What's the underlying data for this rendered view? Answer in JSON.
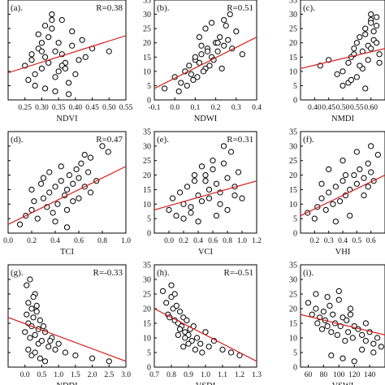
{
  "chart_data": [
    {
      "type": "scatter",
      "panel_label": "(a).",
      "r_label": "R=0.38",
      "xlabel": "NDVI",
      "xlim": [
        0.2,
        0.55
      ],
      "ylim": [
        0,
        35
      ],
      "xticks": [
        "0.25",
        "0.30",
        "0.35",
        "0.40",
        "0.45",
        "0.50",
        "0.55"
      ],
      "yticks": [
        "0",
        "5",
        "10",
        "15",
        "20",
        "25",
        "30",
        "35"
      ],
      "fit_line": {
        "x": [
          0.2,
          0.55
        ],
        "y": [
          9.5,
          22.5
        ]
      },
      "points": {
        "x": [
          0.25,
          0.27,
          0.28,
          0.29,
          0.3,
          0.31,
          0.32,
          0.33,
          0.34,
          0.35,
          0.36,
          0.37,
          0.39,
          0.42,
          0.5,
          0.26,
          0.28,
          0.3,
          0.32,
          0.34,
          0.36,
          0.38,
          0.41,
          0.45,
          0.29,
          0.31,
          0.33,
          0.35,
          0.37,
          0.4,
          0.27,
          0.3,
          0.33,
          0.36,
          0.39,
          0.43,
          0.31,
          0.34,
          0.38
        ],
        "y": [
          12,
          14,
          9,
          18,
          20,
          15,
          22,
          25,
          17,
          10,
          16,
          13,
          19,
          21,
          17,
          7,
          5,
          11,
          13,
          8,
          12,
          6,
          14,
          18,
          23,
          26,
          28,
          20,
          11,
          9,
          16,
          17,
          30,
          28,
          24,
          15,
          4,
          3,
          2
        ]
      }
    },
    {
      "type": "scatter",
      "panel_label": "(b).",
      "r_label": "R=0.51",
      "xlabel": "NDWI",
      "xlim": [
        -0.1,
        0.4
      ],
      "ylim": [
        0,
        35
      ],
      "xticks": [
        "-0.1",
        "0.0",
        "0.1",
        "0.2",
        "0.3",
        "0.4"
      ],
      "yticks": [
        "0",
        "5",
        "10",
        "15",
        "20",
        "25",
        "30",
        "35"
      ],
      "fit_line": {
        "x": [
          -0.1,
          0.4
        ],
        "y": [
          4,
          22
        ]
      },
      "points": {
        "x": [
          -0.05,
          0.0,
          0.03,
          0.05,
          0.07,
          0.08,
          0.1,
          0.12,
          0.13,
          0.15,
          0.16,
          0.18,
          0.2,
          0.21,
          0.22,
          0.24,
          0.25,
          0.27,
          0.3,
          0.33,
          0.02,
          0.06,
          0.09,
          0.11,
          0.14,
          0.17,
          0.19,
          0.23,
          0.26,
          0.28,
          0.12,
          0.15,
          0.18,
          0.21,
          0.24,
          0.1,
          0.13,
          0.16
        ],
        "y": [
          4,
          8,
          6,
          10,
          12,
          9,
          14,
          13,
          16,
          11,
          18,
          15,
          20,
          17,
          22,
          19,
          26,
          30,
          24,
          16,
          3,
          5,
          7,
          8,
          10,
          12,
          14,
          11,
          21,
          18,
          22,
          25,
          27,
          20,
          28,
          15,
          19,
          17
        ]
      }
    },
    {
      "type": "scatter",
      "panel_label": "(c).",
      "r_label": "",
      "xlabel": "NMDI",
      "xlim": [
        0.35,
        0.65
      ],
      "ylim": [
        0,
        35
      ],
      "xticks": [
        "0.40",
        "0.45",
        "0.50",
        "0.55",
        "0.60"
      ],
      "yticks": [
        "0",
        "5",
        "10",
        "15",
        "20",
        "25",
        "30",
        "35"
      ],
      "fit_line": {
        "x": [
          0.35,
          0.65
        ],
        "y": [
          11,
          18
        ]
      },
      "points": {
        "x": [
          0.42,
          0.45,
          0.48,
          0.5,
          0.52,
          0.53,
          0.54,
          0.55,
          0.56,
          0.57,
          0.58,
          0.59,
          0.6,
          0.61,
          0.62,
          0.63,
          0.55,
          0.57,
          0.59,
          0.6,
          0.61,
          0.62,
          0.54,
          0.56,
          0.58,
          0.6,
          0.52,
          0.58,
          0.6,
          0.62,
          0.63,
          0.5,
          0.53
        ],
        "y": [
          12,
          14,
          9,
          10,
          13,
          15,
          18,
          20,
          22,
          17,
          25,
          19,
          28,
          21,
          26,
          16,
          8,
          11,
          14,
          30,
          24,
          29,
          16,
          12,
          23,
          18,
          6,
          4,
          27,
          20,
          13,
          5,
          7
        ]
      }
    },
    {
      "type": "scatter",
      "panel_label": "(d).",
      "r_label": "R=0.47",
      "xlabel": "TCI",
      "xlim": [
        0.0,
        1.0
      ],
      "ylim": [
        0,
        35
      ],
      "xticks": [
        "0.0",
        "0.2",
        "0.4",
        "0.6",
        "0.8",
        "1.0"
      ],
      "yticks": [
        "0",
        "5",
        "10",
        "15",
        "20",
        "25",
        "30",
        "35"
      ],
      "fit_line": {
        "x": [
          0.0,
          1.0
        ],
        "y": [
          3,
          23
        ]
      },
      "points": {
        "x": [
          0.1,
          0.15,
          0.2,
          0.22,
          0.25,
          0.3,
          0.33,
          0.35,
          0.38,
          0.4,
          0.42,
          0.45,
          0.48,
          0.5,
          0.52,
          0.55,
          0.58,
          0.6,
          0.62,
          0.65,
          0.68,
          0.7,
          0.75,
          0.8,
          0.85,
          0.2,
          0.3,
          0.4,
          0.5,
          0.6,
          0.7,
          0.35,
          0.45,
          0.55,
          0.65,
          0.28,
          0.5
        ],
        "y": [
          3,
          6,
          8,
          11,
          5,
          12,
          9,
          14,
          7,
          16,
          10,
          18,
          13,
          15,
          20,
          17,
          22,
          19,
          24,
          16,
          21,
          26,
          18,
          30,
          28,
          15,
          19,
          4,
          8,
          12,
          14,
          21,
          23,
          11,
          27,
          17,
          2
        ]
      }
    },
    {
      "type": "scatter",
      "panel_label": "(e).",
      "r_label": "R=0.31",
      "xlabel": "VCI",
      "xlim": [
        -0.2,
        1.2
      ],
      "ylim": [
        0,
        35
      ],
      "xticks": [
        "0.0",
        "0.2",
        "0.4",
        "0.6",
        "0.8",
        "1.0",
        "1.2"
      ],
      "yticks": [
        "0",
        "5",
        "10",
        "15",
        "20",
        "25",
        "30",
        "35"
      ],
      "fit_line": {
        "x": [
          -0.2,
          1.2
        ],
        "y": [
          8,
          18
        ]
      },
      "points": {
        "x": [
          0.0,
          0.05,
          0.1,
          0.15,
          0.2,
          0.25,
          0.3,
          0.35,
          0.4,
          0.45,
          0.5,
          0.55,
          0.6,
          0.65,
          0.7,
          0.75,
          0.8,
          0.85,
          0.9,
          0.95,
          1.0,
          0.2,
          0.3,
          0.4,
          0.5,
          0.6,
          0.7,
          0.8,
          0.9,
          0.35,
          0.45,
          0.55,
          0.65,
          0.75
        ],
        "y": [
          8,
          12,
          6,
          14,
          10,
          16,
          9,
          18,
          13,
          11,
          20,
          15,
          22,
          17,
          14,
          24,
          19,
          28,
          16,
          21,
          12,
          5,
          7,
          4,
          18,
          25,
          10,
          8,
          13,
          20,
          23,
          12,
          6,
          30
        ]
      }
    },
    {
      "type": "scatter",
      "panel_label": "(f).",
      "r_label": "",
      "xlabel": "VHI",
      "xlim": [
        0.1,
        0.7
      ],
      "ylim": [
        0,
        35
      ],
      "xticks": [
        "0.2",
        "0.3",
        "0.4",
        "0.5",
        "0.6"
      ],
      "yticks": [
        "0",
        "5",
        "10",
        "15",
        "20",
        "25",
        "30",
        "35"
      ],
      "fit_line": {
        "x": [
          0.1,
          0.7
        ],
        "y": [
          6,
          20
        ]
      },
      "points": {
        "x": [
          0.15,
          0.2,
          0.22,
          0.25,
          0.28,
          0.3,
          0.33,
          0.35,
          0.38,
          0.4,
          0.42,
          0.45,
          0.48,
          0.5,
          0.52,
          0.55,
          0.58,
          0.6,
          0.62,
          0.65,
          0.3,
          0.4,
          0.5,
          0.6,
          0.35,
          0.45,
          0.55,
          0.25,
          0.42,
          0.58
        ],
        "y": [
          7,
          5,
          9,
          12,
          8,
          14,
          10,
          16,
          11,
          18,
          13,
          15,
          20,
          17,
          22,
          19,
          24,
          21,
          18,
          27,
          22,
          25,
          28,
          30,
          4,
          6,
          13,
          17,
          20,
          16
        ]
      }
    },
    {
      "type": "scatter",
      "panel_label": "(g).",
      "r_label": "R=-0.33",
      "xlabel": "NDDI",
      "xlim": [
        -0.5,
        3.0
      ],
      "ylim": [
        0,
        35
      ],
      "xticks": [
        "0.0",
        "0.5",
        "1.0",
        "1.5",
        "2.0",
        "2.5",
        "3.0"
      ],
      "yticks": [
        "0",
        "5",
        "10",
        "15",
        "20",
        "25",
        "30",
        "35"
      ],
      "fit_line": {
        "x": [
          -0.5,
          3.0
        ],
        "y": [
          17,
          2
        ]
      },
      "points": {
        "x": [
          0.0,
          0.05,
          0.1,
          0.1,
          0.15,
          0.2,
          0.2,
          0.25,
          0.3,
          0.3,
          0.35,
          0.4,
          0.4,
          0.45,
          0.5,
          0.55,
          0.6,
          0.7,
          0.8,
          0.9,
          1.0,
          1.2,
          1.5,
          2.0,
          2.5,
          0.05,
          0.15,
          0.25,
          0.35,
          0.1,
          0.2,
          0.3,
          0.45,
          0.6,
          0.75
        ],
        "y": [
          12,
          18,
          15,
          22,
          10,
          20,
          14,
          17,
          25,
          11,
          19,
          8,
          13,
          16,
          9,
          14,
          12,
          7,
          10,
          6,
          8,
          5,
          4,
          3,
          2,
          28,
          30,
          24,
          21,
          6,
          4,
          5,
          3,
          2,
          9
        ]
      }
    },
    {
      "type": "scatter",
      "panel_label": "(h).",
      "r_label": "R=-0.51",
      "xlabel": "VSDI",
      "xlim": [
        0.7,
        1.3
      ],
      "ylim": [
        0,
        35
      ],
      "xticks": [
        "0.7",
        "0.8",
        "0.9",
        "1.0",
        "1.1",
        "1.2",
        "1.3"
      ],
      "yticks": [
        "0",
        "5",
        "10",
        "15",
        "20",
        "25",
        "30",
        "35"
      ],
      "fit_line": {
        "x": [
          0.7,
          1.3
        ],
        "y": [
          20,
          2
        ]
      },
      "points": {
        "x": [
          0.75,
          0.77,
          0.78,
          0.8,
          0.81,
          0.82,
          0.83,
          0.84,
          0.85,
          0.86,
          0.87,
          0.88,
          0.89,
          0.9,
          0.91,
          0.92,
          0.93,
          0.95,
          0.97,
          1.0,
          1.02,
          1.05,
          1.1,
          1.15,
          1.2,
          0.8,
          0.82,
          0.85,
          0.88,
          0.9,
          0.94,
          0.98,
          0.79,
          0.84,
          0.87
        ],
        "y": [
          26,
          22,
          18,
          24,
          20,
          16,
          21,
          15,
          19,
          14,
          17,
          12,
          16,
          11,
          13,
          9,
          14,
          10,
          8,
          12,
          7,
          9,
          6,
          5,
          4,
          28,
          25,
          13,
          10,
          8,
          6,
          5,
          17,
          11,
          7
        ]
      }
    },
    {
      "type": "scatter",
      "panel_label": "(i).",
      "r_label": "",
      "xlabel": "VSWI",
      "xlim": [
        50,
        160
      ],
      "ylim": [
        0,
        35
      ],
      "xticks": [
        "60",
        "80",
        "100",
        "120",
        "140"
      ],
      "yticks": [
        "0",
        "5",
        "10",
        "15",
        "20",
        "25",
        "30",
        "35"
      ],
      "fit_line": {
        "x": [
          50,
          160
        ],
        "y": [
          18,
          11
        ]
      },
      "points": {
        "x": [
          60,
          65,
          70,
          72,
          75,
          78,
          80,
          82,
          85,
          88,
          90,
          92,
          95,
          98,
          100,
          102,
          105,
          108,
          110,
          112,
          115,
          118,
          120,
          125,
          130,
          135,
          140,
          145,
          150,
          155,
          70,
          85,
          100,
          115,
          130,
          145,
          90,
          105,
          120,
          135
        ],
        "y": [
          22,
          18,
          20,
          15,
          17,
          13,
          19,
          16,
          14,
          21,
          12,
          18,
          15,
          11,
          23,
          14,
          17,
          9,
          16,
          12,
          18,
          10,
          14,
          13,
          11,
          9,
          12,
          8,
          10,
          7,
          25,
          24,
          26,
          20,
          6,
          5,
          4,
          3,
          2,
          15
        ]
      }
    }
  ]
}
